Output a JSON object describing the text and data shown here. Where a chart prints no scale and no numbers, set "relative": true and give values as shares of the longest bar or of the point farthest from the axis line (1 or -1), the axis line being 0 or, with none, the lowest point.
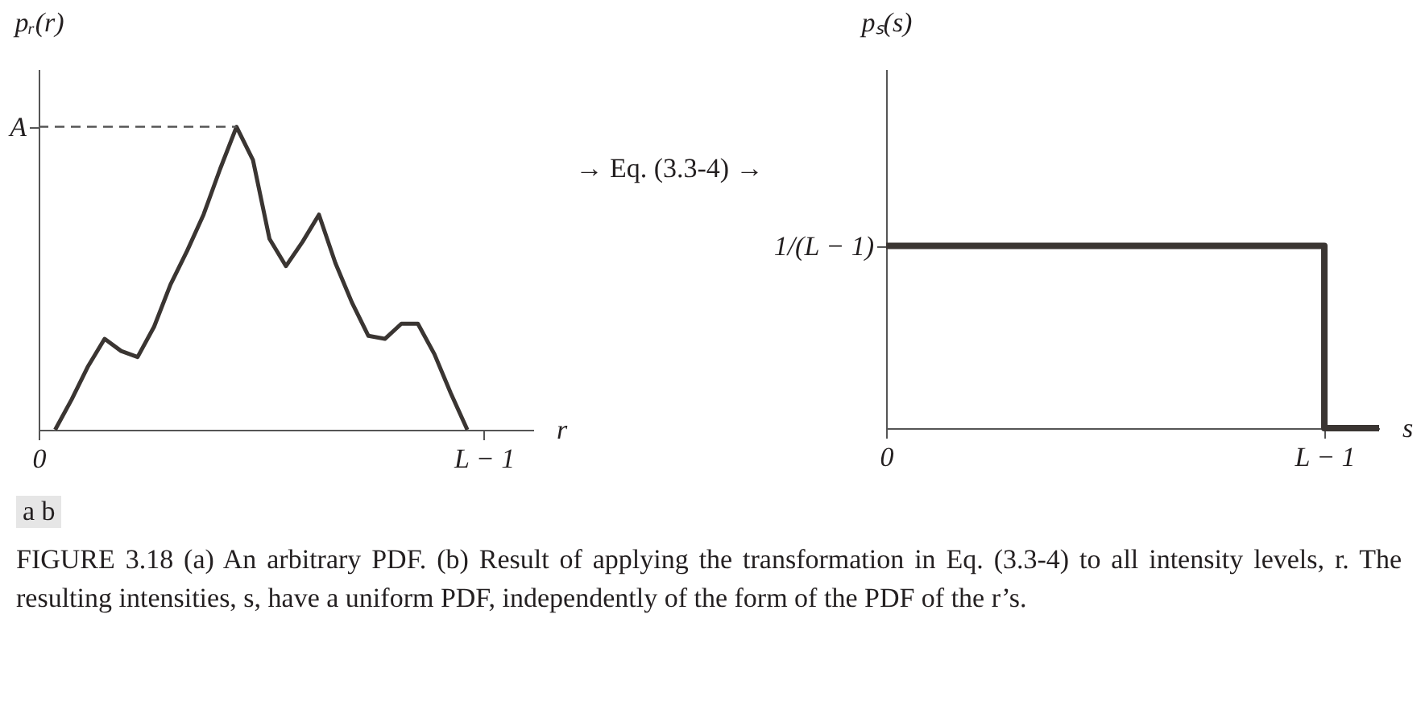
{
  "chart_data": [
    {
      "type": "line",
      "relative": true,
      "ylabel": "pᵣ(r)",
      "xlabel": "r",
      "categories": [
        "0",
        null,
        null,
        null,
        null,
        null,
        null,
        null,
        null,
        null,
        null,
        null,
        null,
        null,
        null,
        null,
        null,
        null,
        null,
        null,
        null,
        null,
        null,
        null,
        null,
        null,
        null,
        "L − 1",
        null,
        null,
        null
      ],
      "ref_lines": [
        {
          "axis": "y",
          "value": 1,
          "label": "A",
          "line_style": "dashed",
          "color": "#555555"
        }
      ],
      "series": [
        {
          "color": "#3a3532",
          "values": [
            null,
            0,
            0.1,
            0.21,
            0.3,
            0.26,
            0.24,
            0.34,
            0.48,
            0.59,
            0.71,
            0.86,
            1,
            0.89,
            0.63,
            0.54,
            0.62,
            0.71,
            0.55,
            0.42,
            0.31,
            0.3,
            0.35,
            0.35,
            0.25,
            0.12,
            0,
            null,
            null,
            null,
            null
          ]
        }
      ],
      "annotations": [
        "→ Eq. (3.3-4) →"
      ]
    },
    {
      "type": "step",
      "relative": true,
      "ylabel": "pₛ(s)",
      "xlabel": "s",
      "categories": [
        "0",
        null,
        null,
        null,
        null,
        null,
        null,
        null,
        "L − 1",
        null
      ],
      "series": [
        {
          "color": "#3a3532",
          "values": [
            1,
            1,
            1,
            1,
            1,
            1,
            1,
            1,
            1,
            0
          ]
        }
      ],
      "annotations": [
        "1/(L − 1)",
        "a b",
        "FIGURE 3.18 (a) An arbitrary PDF. (b) Result of applying the transformation in Eq. (3.3-4) to all intensity levels, r. The resulting intensities, s, have a uniform PDF, independently of the form of the PDF of the r’s."
      ]
    }
  ]
}
